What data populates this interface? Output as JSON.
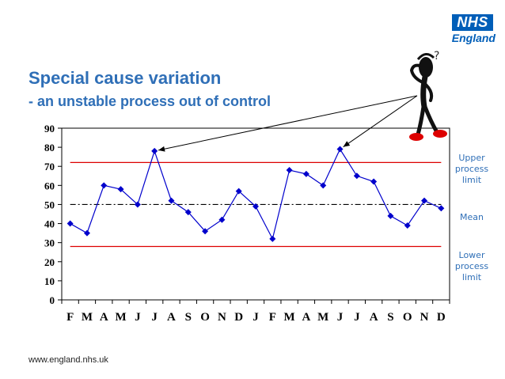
{
  "header": {
    "title": "Special cause variation",
    "subtitle": "- an unstable process out of control",
    "logo_text": "NHS",
    "logo_sub": "England"
  },
  "footer": {
    "url": "www.england.nhs.uk"
  },
  "labels": {
    "upper": "Upper process limit",
    "mean": "Mean",
    "lower": "Lower process limit",
    "question_mark": "?"
  },
  "colors": {
    "title": "#2f6fb7",
    "series": "#0000cc",
    "limits": "#dd0000",
    "mean": "#000000",
    "logo": "#005eb8"
  },
  "chart_data": {
    "type": "line",
    "categories": [
      "F",
      "M",
      "A",
      "M",
      "J",
      "J",
      "A",
      "S",
      "O",
      "N",
      "D",
      "J",
      "F",
      "M",
      "A",
      "M",
      "J",
      "J",
      "A",
      "S",
      "O",
      "N",
      "D"
    ],
    "series": [
      {
        "values": [
          40,
          35,
          60,
          58,
          50,
          78,
          52,
          46,
          36,
          42,
          57,
          49,
          32,
          68,
          66,
          60,
          79,
          65,
          62,
          44,
          39,
          52,
          48
        ]
      }
    ],
    "upper_limit": 72,
    "mean": 50,
    "lower_limit": 28,
    "yticks": [
      0,
      10,
      20,
      30,
      40,
      50,
      60,
      70,
      80,
      90
    ],
    "ylim": [
      0,
      90
    ],
    "title": "",
    "xlabel": "",
    "ylabel": "",
    "grid": false
  }
}
